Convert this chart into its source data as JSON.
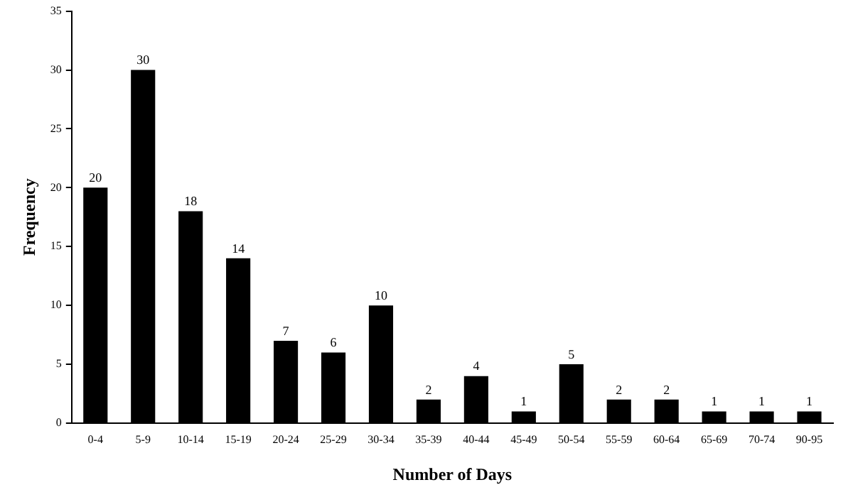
{
  "chart_data": {
    "type": "bar",
    "xlabel": "Number of Days",
    "ylabel": "Frequency",
    "categories": [
      "0-4",
      "5-9",
      "10-14",
      "15-19",
      "20-24",
      "25-29",
      "30-34",
      "35-39",
      "40-44",
      "45-49",
      "50-54",
      "55-59",
      "60-64",
      "65-69",
      "70-74",
      "90-95"
    ],
    "values": [
      20,
      30,
      18,
      14,
      7,
      6,
      10,
      2,
      4,
      1,
      5,
      2,
      2,
      1,
      1,
      1
    ],
    "color": "#000000",
    "ylim": [
      0,
      35
    ],
    "yticks": [
      0,
      5,
      10,
      15,
      20,
      25,
      30,
      35
    ],
    "grid": false,
    "legend": false,
    "data_labels": true
  }
}
